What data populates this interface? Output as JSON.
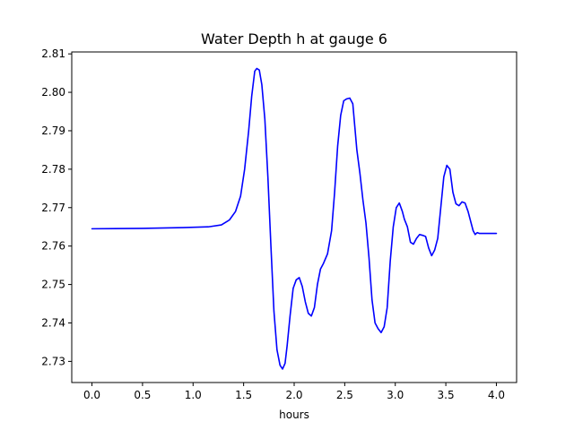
{
  "chart_data": {
    "type": "line",
    "title": "Water Depth h at gauge 6",
    "xlabel": "hours",
    "ylabel": "",
    "xlim": [
      -0.2,
      4.2
    ],
    "ylim": [
      2.7245,
      2.8105
    ],
    "grid": false,
    "x_ticks": [
      0.0,
      0.5,
      1.0,
      1.5,
      2.0,
      2.5,
      3.0,
      3.5,
      4.0
    ],
    "x_tick_labels": [
      "0.0",
      "0.5",
      "1.0",
      "1.5",
      "2.0",
      "2.5",
      "3.0",
      "3.5",
      "4.0"
    ],
    "y_ticks": [
      2.73,
      2.74,
      2.75,
      2.76,
      2.77,
      2.78,
      2.79,
      2.8,
      2.81
    ],
    "y_tick_labels": [
      "2.73",
      "2.74",
      "2.75",
      "2.76",
      "2.77",
      "2.78",
      "2.79",
      "2.80",
      "2.81"
    ],
    "series": [
      {
        "color": "#0000ff",
        "x": [
          0.0,
          0.5,
          0.9,
          1.15,
          1.28,
          1.36,
          1.42,
          1.47,
          1.51,
          1.55,
          1.58,
          1.61,
          1.63,
          1.655,
          1.68,
          1.71,
          1.74,
          1.77,
          1.8,
          1.83,
          1.86,
          1.885,
          1.91,
          1.93,
          1.96,
          1.99,
          2.02,
          2.05,
          2.08,
          2.11,
          2.14,
          2.17,
          2.2,
          2.23,
          2.26,
          2.29,
          2.33,
          2.37,
          2.4,
          2.43,
          2.46,
          2.49,
          2.52,
          2.55,
          2.58,
          2.6,
          2.62,
          2.65,
          2.68,
          2.71,
          2.74,
          2.77,
          2.8,
          2.83,
          2.86,
          2.89,
          2.92,
          2.95,
          2.98,
          3.01,
          3.04,
          3.07,
          3.09,
          3.12,
          3.15,
          3.18,
          3.21,
          3.24,
          3.27,
          3.3,
          3.33,
          3.36,
          3.39,
          3.42,
          3.45,
          3.48,
          3.51,
          3.54,
          3.57,
          3.6,
          3.63,
          3.66,
          3.69,
          3.72,
          3.75,
          3.77,
          3.79,
          3.81,
          3.83,
          3.86,
          3.89,
          3.92,
          3.95,
          3.97,
          4.0
        ],
        "y": [
          2.7645,
          2.7646,
          2.7648,
          2.765,
          2.7655,
          2.7668,
          2.769,
          2.773,
          2.78,
          2.79,
          2.799,
          2.8055,
          2.8062,
          2.8058,
          2.802,
          2.793,
          2.778,
          2.76,
          2.743,
          2.733,
          2.729,
          2.728,
          2.7295,
          2.734,
          2.742,
          2.749,
          2.7512,
          2.7518,
          2.7495,
          2.7455,
          2.7425,
          2.7418,
          2.744,
          2.75,
          2.754,
          2.7555,
          2.758,
          2.764,
          2.774,
          2.786,
          2.794,
          2.7978,
          2.7983,
          2.7985,
          2.797,
          2.791,
          2.785,
          2.779,
          2.772,
          2.766,
          2.757,
          2.746,
          2.74,
          2.7385,
          2.7375,
          2.739,
          2.744,
          2.756,
          2.765,
          2.77,
          2.7712,
          2.769,
          2.767,
          2.765,
          2.761,
          2.7605,
          2.762,
          2.763,
          2.7628,
          2.7625,
          2.7595,
          2.7575,
          2.759,
          2.762,
          2.77,
          2.778,
          2.781,
          2.78,
          2.774,
          2.771,
          2.7705,
          2.7715,
          2.7712,
          2.769,
          2.766,
          2.764,
          2.763,
          2.7635,
          2.7633,
          2.7633,
          2.7633,
          2.7633,
          2.7633,
          2.7633,
          2.7633
        ]
      }
    ]
  }
}
